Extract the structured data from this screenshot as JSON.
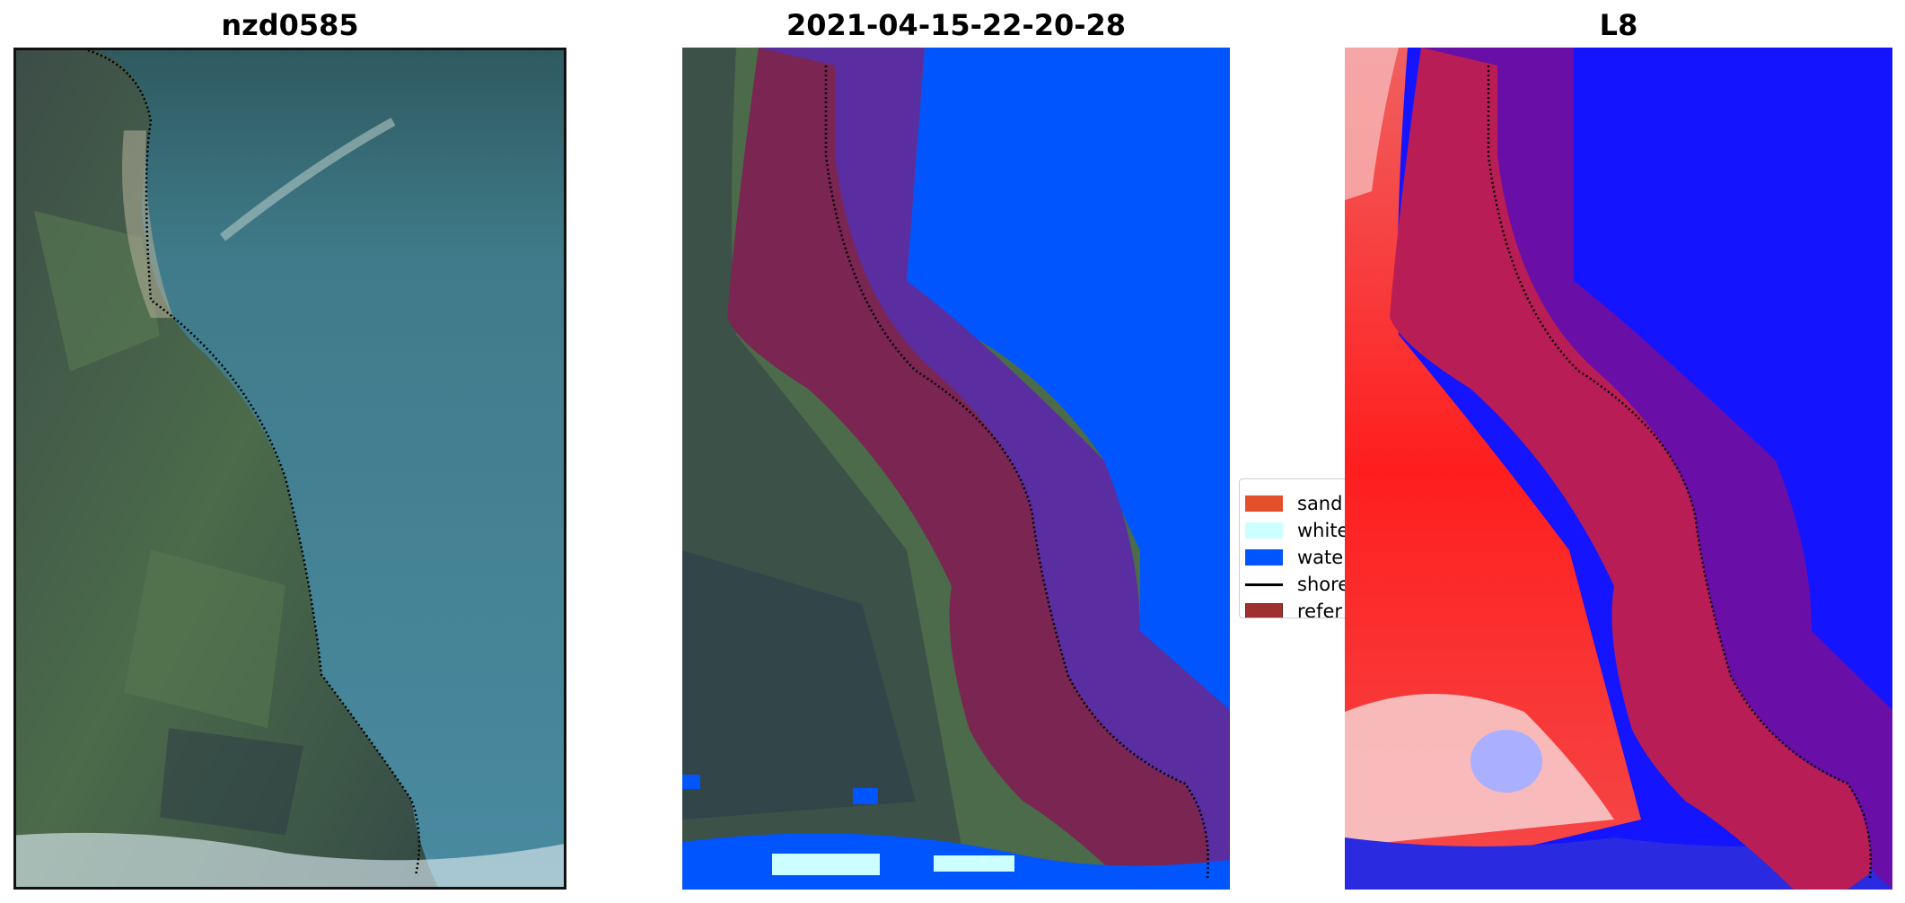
{
  "panels": [
    {
      "title": "nzd0585"
    },
    {
      "title": "2021-04-15-22-20-28"
    },
    {
      "title": "L8"
    }
  ],
  "legend": {
    "items": [
      {
        "label": "sand",
        "color": "#e44f2c",
        "kind": "patch"
      },
      {
        "label": "white",
        "color": "#ccffff",
        "kind": "patch"
      },
      {
        "label": "wate",
        "color": "#0055ff",
        "kind": "patch"
      },
      {
        "label": "shore",
        "color": "#000000",
        "kind": "line"
      },
      {
        "label": "refer",
        "color": "#a03030",
        "kind": "patch"
      }
    ]
  },
  "colors": {
    "land_dark": "#3b4f44",
    "land_green": "#4e6e4c",
    "sea": "#3f7b8a",
    "water_class": "#0055ff",
    "reference_buffer": "#a03030",
    "sand_index": "#ff1e1e",
    "water_index": "#1414ff",
    "surf": "#ccffff"
  },
  "icons": [
    "legend-patch",
    "legend-line"
  ]
}
